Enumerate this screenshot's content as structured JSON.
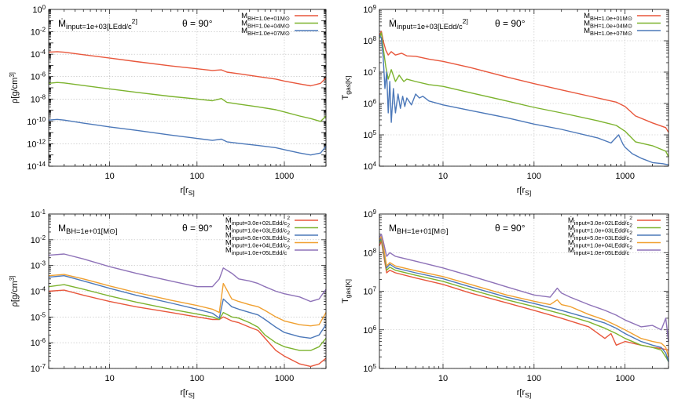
{
  "chart_data": [
    {
      "type": "line",
      "x_log": true,
      "y_log": true,
      "xlim": [
        2,
        3000
      ],
      "ylim": [
        1e-14,
        1
      ],
      "xticks": [
        "10",
        "100",
        "1000"
      ],
      "yticks": [
        "10-14",
        "10-12",
        "10-10",
        "10-8",
        "10-6",
        "10-4",
        "10-2",
        "100"
      ],
      "xlabel": "r[rS]",
      "ylabel": "ρ[g/cm3]",
      "annotation_main": "Ṁinput=1e+03[LEdd/c2]",
      "annotation_theta": "θ = 90°",
      "grid": true,
      "legend_position": "top-right",
      "series": [
        {
          "name": "MBH=1.0e+01M⊙",
          "color": "#e8573c",
          "x": [
            2,
            2.5,
            3,
            5,
            10,
            20,
            50,
            100,
            150,
            190,
            220,
            300,
            500,
            800,
            1000,
            1500,
            2000,
            2600,
            3000
          ],
          "y": [
            0.00015,
            0.00017,
            0.00015,
            9e-05,
            4.5e-05,
            2.2e-05,
            9e-06,
            5e-06,
            3.5e-06,
            4e-06,
            2.5e-06,
            1.8e-06,
            1e-06,
            6e-07,
            4e-07,
            2.2e-07,
            1.5e-07,
            2.5e-07,
            8e-07
          ]
        },
        {
          "name": "MBH=1.0e+04M⊙",
          "color": "#7cb32e",
          "x": [
            2,
            2.5,
            3,
            5,
            10,
            20,
            50,
            100,
            150,
            190,
            220,
            300,
            500,
            800,
            1000,
            1500,
            2000,
            2600,
            3000
          ],
          "y": [
            2.5e-07,
            3e-07,
            2.7e-07,
            1.6e-07,
            8e-08,
            4e-08,
            1.7e-08,
            1e-08,
            7e-09,
            1.1e-08,
            5e-09,
            3.5e-09,
            2e-09,
            1.1e-09,
            7e-10,
            3e-10,
            1.8e-10,
            1e-10,
            3e-10
          ]
        },
        {
          "name": "MBH=1.0e+07M⊙",
          "color": "#4c78b9",
          "x": [
            2,
            2.5,
            3,
            5,
            10,
            20,
            50,
            100,
            150,
            190,
            220,
            300,
            500,
            800,
            1000,
            1500,
            2000,
            2600,
            3000
          ],
          "y": [
            1.3e-10,
            1.5e-10,
            1.3e-10,
            7e-11,
            3.2e-11,
            1.6e-11,
            6e-12,
            3e-12,
            2e-12,
            2.6e-12,
            1.5e-12,
            1.1e-12,
            7e-13,
            4.5e-13,
            3e-13,
            1.5e-13,
            1e-13,
            1.5e-13,
            6e-13
          ]
        }
      ]
    },
    {
      "type": "line",
      "x_log": true,
      "y_log": true,
      "xlim": [
        2,
        3000
      ],
      "ylim": [
        10000.0,
        1000000000.0
      ],
      "xticks": [
        "10",
        "100",
        "1000"
      ],
      "yticks": [
        "104",
        "105",
        "106",
        "107",
        "108",
        "109"
      ],
      "xlabel": "r[rS]",
      "ylabel": "Tgas[K]",
      "annotation_main": "Ṁinput=1e+03[LEdd/c2]",
      "annotation_theta": "θ = 90°",
      "grid": true,
      "legend_position": "top-right",
      "series": [
        {
          "name": "MBH=1.0e+01M⊙",
          "color": "#e8573c",
          "x": [
            2,
            2.1,
            2.2,
            2.35,
            2.5,
            2.7,
            3,
            3.5,
            4,
            5,
            7,
            10,
            20,
            50,
            100,
            200,
            500,
            800,
            1000,
            1300,
            2000,
            2800,
            3000
          ],
          "y": [
            150000000.0,
            200000000.0,
            100000000.0,
            50000000.0,
            35000000.0,
            45000000.0,
            35000000.0,
            40000000.0,
            33000000.0,
            32000000.0,
            26000000.0,
            22000000.0,
            14000000.0,
            7000000.0,
            4300000.0,
            2700000.0,
            1500000.0,
            1100000.0,
            800000.0,
            400000.0,
            240000.0,
            170000.0,
            120000.0
          ]
        },
        {
          "name": "MBH=1.0e+04M⊙",
          "color": "#7cb32e",
          "x": [
            2,
            2.1,
            2.2,
            2.35,
            2.5,
            2.7,
            3,
            3.3,
            3.7,
            4,
            5,
            7,
            10,
            20,
            50,
            100,
            200,
            500,
            800,
            1000,
            1300,
            2000,
            2800,
            3000
          ],
          "y": [
            120000000.0,
            180000000.0,
            60000000.0,
            15000000.0,
            6000000.0,
            12000000.0,
            5000000.0,
            8000000.0,
            5000000.0,
            6000000.0,
            5000000.0,
            4000000.0,
            3500000.0,
            2200000.0,
            1200000.0,
            750000.0,
            500000.0,
            280000.0,
            200000.0,
            130000.0,
            60000.0,
            45000.0,
            30000.0,
            20000.0
          ]
        },
        {
          "name": "MBH=1.0e+07M⊙",
          "color": "#4c78b9",
          "x": [
            2,
            2.1,
            2.2,
            2.3,
            2.4,
            2.5,
            2.6,
            2.7,
            2.85,
            3,
            3.2,
            3.4,
            3.6,
            3.8,
            4,
            4.5,
            5,
            5.5,
            6,
            7,
            10,
            20,
            50,
            100,
            200,
            500,
            700,
            850,
            950,
            1000,
            1200,
            1500,
            2000,
            2600,
            3000
          ],
          "y": [
            150000000.0,
            120000000.0,
            30000000.0,
            3000000.0,
            10000000.0,
            500000.0,
            5000000.0,
            250000.0,
            3000000.0,
            500000.0,
            2000000.0,
            700000.0,
            1700000.0,
            800000.0,
            1500000.0,
            900000.0,
            2000000.0,
            1500000.0,
            1700000.0,
            1200000.0,
            900000.0,
            600000.0,
            350000.0,
            220000.0,
            150000.0,
            80000.0,
            55000.0,
            100000.0,
            50000.0,
            40000.0,
            25000.0,
            18000.0,
            13000.0,
            12000.0,
            11000.0
          ]
        }
      ]
    },
    {
      "type": "line",
      "x_log": true,
      "y_log": true,
      "xlim": [
        2,
        3000
      ],
      "ylim": [
        1e-07,
        0.1
      ],
      "xticks": [
        "10",
        "100",
        "1000"
      ],
      "yticks": [
        "10-7",
        "10-6",
        "10-5",
        "10-4",
        "10-3",
        "10-2",
        "10-1"
      ],
      "xlabel": "r[rS]",
      "ylabel": "ρ[g/cm3]",
      "annotation_main": "MBH=1e+01[M⊙]",
      "annotation_theta": "θ = 90°",
      "grid": true,
      "legend_position": "top-right",
      "series": [
        {
          "name": "Ṁinput=3.0e+02LEdd/c2",
          "color": "#e8573c",
          "x": [
            2,
            3,
            5,
            10,
            20,
            50,
            100,
            150,
            180,
            200,
            250,
            300,
            400,
            500,
            600,
            800,
            1000,
            1500,
            2000,
            2500,
            3000
          ],
          "y": [
            0.0001,
            0.00011,
            7e-05,
            4e-05,
            2.5e-05,
            1.5e-05,
            1e-05,
            8e-06,
            8e-06,
            1e-05,
            7e-06,
            6e-06,
            4e-06,
            3e-06,
            1.5e-06,
            5e-07,
            3e-07,
            1.5e-07,
            1.2e-07,
            1.5e-07,
            2.5e-07
          ]
        },
        {
          "name": "Ṁinput=1.0e+03LEdd/c2",
          "color": "#7cb32e",
          "x": [
            2,
            3,
            5,
            10,
            20,
            50,
            100,
            150,
            180,
            200,
            250,
            300,
            400,
            500,
            600,
            800,
            1000,
            1500,
            2000,
            2500,
            3000
          ],
          "y": [
            0.00015,
            0.00018,
            0.00012,
            6.5e-05,
            3.8e-05,
            2e-05,
            1.3e-05,
            1e-05,
            8e-06,
            1.5e-05,
            1e-05,
            9e-06,
            6e-06,
            4e-06,
            2e-06,
            1e-06,
            7e-07,
            5e-07,
            5e-07,
            7e-07,
            1.5e-06
          ]
        },
        {
          "name": "Ṁinput=5.0e+03LEdd/c2",
          "color": "#4c78b9",
          "x": [
            2,
            3,
            5,
            10,
            20,
            50,
            100,
            150,
            180,
            200,
            250,
            300,
            400,
            500,
            600,
            800,
            1000,
            1500,
            2000,
            2500,
            3000
          ],
          "y": [
            0.00035,
            0.0004,
            0.00025,
            0.00013,
            7e-05,
            3.5e-05,
            2e-05,
            1.4e-05,
            9e-06,
            5e-05,
            2.5e-05,
            2e-05,
            1.5e-05,
            1.2e-05,
            8e-06,
            4e-06,
            2.5e-06,
            1.7e-06,
            1.5e-06,
            2e-06,
            5e-06
          ]
        },
        {
          "name": "Ṁinput=1.0e+04LEdd/c2",
          "color": "#f0a030",
          "x": [
            2,
            3,
            5,
            10,
            20,
            50,
            100,
            150,
            180,
            200,
            250,
            300,
            400,
            500,
            600,
            800,
            1000,
            1500,
            2000,
            2500,
            3000
          ],
          "y": [
            0.0004,
            0.00045,
            0.0003,
            0.00016,
            9e-05,
            4.5e-05,
            2.8e-05,
            2e-05,
            1.5e-05,
            0.0002,
            5e-05,
            4e-05,
            3e-05,
            2.5e-05,
            1.8e-05,
            1e-05,
            7e-06,
            5e-06,
            4.5e-06,
            5e-06,
            1.5e-05
          ]
        },
        {
          "name": "Ṁinput=1.0e+05LEdd/c2",
          "color": "#8e72b8",
          "x": [
            2,
            3,
            5,
            10,
            20,
            50,
            100,
            150,
            180,
            200,
            250,
            300,
            400,
            500,
            600,
            800,
            1000,
            1500,
            2000,
            2500,
            3000
          ],
          "y": [
            0.0025,
            0.0028,
            0.0018,
            0.0009,
            0.0005,
            0.00025,
            0.00015,
            0.00015,
            0.0003,
            0.0008,
            0.0005,
            0.0003,
            0.00025,
            0.0002,
            0.00015,
            0.0001,
            8e-05,
            6e-05,
            4e-05,
            5e-05,
            0.00012
          ]
        }
      ]
    },
    {
      "type": "line",
      "x_log": true,
      "y_log": true,
      "xlim": [
        2,
        3000
      ],
      "ylim": [
        100000.0,
        1000000000.0
      ],
      "xticks": [
        "10",
        "100",
        "1000"
      ],
      "yticks": [
        "105",
        "106",
        "107",
        "108",
        "109"
      ],
      "xlabel": "r[rS]",
      "ylabel": "Tgas[K]",
      "annotation_main": "MBH=1e+01[M⊙]",
      "annotation_theta": "θ = 90°",
      "grid": true,
      "legend_position": "top-right",
      "series": [
        {
          "name": "Ṁinput=3.0e+02LEdd/c2",
          "color": "#e8573c",
          "x": [
            2,
            2.1,
            2.2,
            2.4,
            2.6,
            3,
            5,
            10,
            20,
            50,
            100,
            200,
            400,
            600,
            700,
            800,
            1000,
            1500,
            2000,
            2500,
            3000
          ],
          "y": [
            150000000.0,
            200000000.0,
            100000000.0,
            30000000.0,
            35000000.0,
            30000000.0,
            22000000.0,
            15000000.0,
            9000000.0,
            5000000.0,
            3200000.0,
            2000000.0,
            1200000.0,
            600000.0,
            800000.0,
            400000.0,
            500000.0,
            400000.0,
            350000.0,
            330000.0,
            300000.0
          ]
        },
        {
          "name": "Ṁinput=1.0e+03LEdd/c2",
          "color": "#7cb32e",
          "x": [
            2,
            2.1,
            2.2,
            2.4,
            2.6,
            3,
            5,
            10,
            20,
            50,
            100,
            200,
            400,
            600,
            800,
            1000,
            1500,
            2000,
            2500,
            2800,
            3000
          ],
          "y": [
            180000000.0,
            220000000.0,
            120000000.0,
            35000000.0,
            42000000.0,
            35000000.0,
            26000000.0,
            18000000.0,
            11000000.0,
            6000000.0,
            4000000.0,
            2600000.0,
            1600000.0,
            1100000.0,
            800000.0,
            600000.0,
            400000.0,
            350000.0,
            300000.0,
            200000.0,
            150000.0
          ]
        },
        {
          "name": "Ṁinput=5.0e+03LEdd/c2",
          "color": "#4c78b9",
          "x": [
            2,
            2.1,
            2.2,
            2.4,
            2.6,
            3,
            5,
            10,
            20,
            50,
            100,
            200,
            400,
            600,
            800,
            1000,
            1500,
            2000,
            2500,
            2800,
            3000
          ],
          "y": [
            200000000.0,
            240000000.0,
            140000000.0,
            40000000.0,
            50000000.0,
            40000000.0,
            30000000.0,
            21000000.0,
            13000000.0,
            7000000.0,
            4800000.0,
            3200000.0,
            2000000.0,
            1500000.0,
            1100000.0,
            800000.0,
            500000.0,
            400000.0,
            350000.0,
            250000.0,
            150000.0
          ]
        },
        {
          "name": "Ṁinput=1.0e+04LEdd/c2",
          "color": "#f0a030",
          "x": [
            2,
            2.1,
            2.2,
            2.4,
            2.6,
            3,
            5,
            10,
            20,
            50,
            100,
            150,
            180,
            200,
            250,
            400,
            600,
            800,
            1000,
            1500,
            2000,
            2500,
            2800,
            3000
          ],
          "y": [
            220000000.0,
            260000000.0,
            160000000.0,
            45000000.0,
            55000000.0,
            45000000.0,
            34000000.0,
            24000000.0,
            15000000.0,
            8000000.0,
            5500000.0,
            4500000.0,
            6000000.0,
            4500000.0,
            4000000.0,
            2500000.0,
            1800000.0,
            1300000.0,
            1000000.0,
            600000.0,
            500000.0,
            450000.0,
            350000.0,
            200000.0
          ]
        },
        {
          "name": "Ṁinput=1.0e+05LEdd/c2",
          "color": "#8e72b8",
          "x": [
            2,
            2.1,
            2.2,
            2.4,
            2.6,
            3,
            5,
            10,
            20,
            50,
            100,
            150,
            180,
            200,
            250,
            400,
            600,
            800,
            1000,
            1500,
            2000,
            2500,
            2800,
            3000
          ],
          "y": [
            250000000.0,
            300000000.0,
            200000000.0,
            80000000.0,
            100000000.0,
            80000000.0,
            60000000.0,
            40000000.0,
            25000000.0,
            13000000.0,
            8000000.0,
            7000000.0,
            12000000.0,
            9000000.0,
            7000000.0,
            4500000.0,
            3200000.0,
            2400000.0,
            1800000.0,
            1200000.0,
            1300000.0,
            1000000.0,
            2000000.0,
            500000.0
          ]
        }
      ]
    }
  ]
}
